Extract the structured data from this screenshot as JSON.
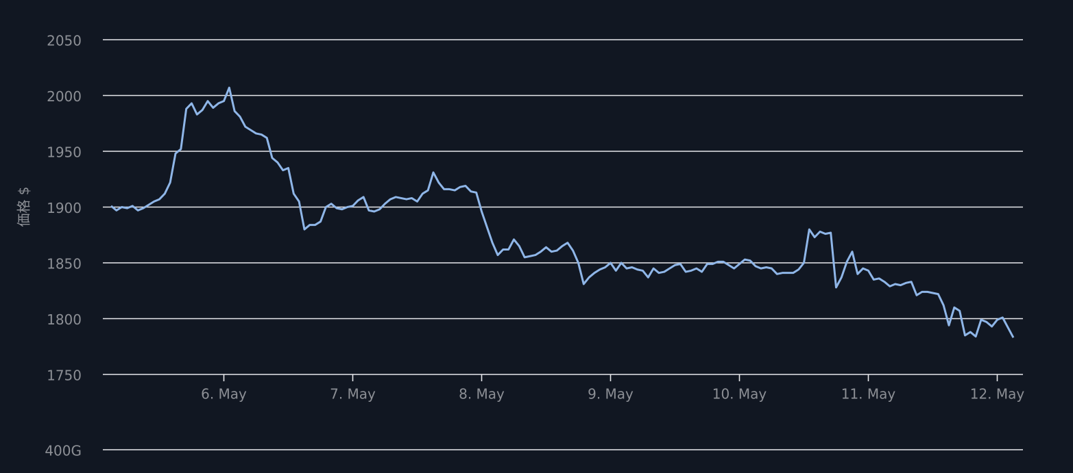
{
  "chart_data": [
    {
      "type": "line",
      "ylabel": "価格 $",
      "categories": [
        null,
        null,
        null,
        null,
        null,
        null,
        null,
        null,
        null,
        null,
        null,
        null,
        null,
        null,
        null,
        null,
        null,
        null,
        null,
        null,
        null,
        "6. May",
        null,
        null,
        null,
        null,
        null,
        null,
        null,
        null,
        null,
        null,
        null,
        null,
        null,
        null,
        null,
        null,
        null,
        null,
        null,
        null,
        null,
        null,
        null,
        "7. May",
        null,
        null,
        null,
        null,
        null,
        null,
        null,
        null,
        null,
        null,
        null,
        null,
        null,
        null,
        null,
        null,
        null,
        null,
        null,
        null,
        null,
        null,
        null,
        "8. May",
        null,
        null,
        null,
        null,
        null,
        null,
        null,
        null,
        null,
        null,
        null,
        null,
        null,
        null,
        null,
        null,
        null,
        null,
        null,
        null,
        null,
        null,
        null,
        "9. May",
        null,
        null,
        null,
        null,
        null,
        null,
        null,
        null,
        null,
        null,
        null,
        null,
        null,
        null,
        null,
        null,
        null,
        null,
        null,
        null,
        null,
        null,
        null,
        "10. May",
        null,
        null,
        null,
        null,
        null,
        null,
        null,
        null,
        null,
        null,
        null,
        null,
        null,
        null,
        null,
        null,
        null,
        null,
        null,
        null,
        null,
        null,
        null,
        "11. May",
        null,
        null,
        null,
        null,
        null,
        null,
        null,
        null,
        null,
        null,
        null,
        null,
        null,
        null,
        null,
        null,
        null,
        null,
        null,
        null,
        null,
        null,
        null,
        "12. May",
        null,
        null,
        null
      ],
      "series": [
        {
          "color": "#8fb6e8",
          "values": [
            1901,
            1897,
            1900,
            1899,
            1901,
            1897,
            1899,
            1902,
            1905,
            1907,
            1912,
            1922,
            1948,
            1952,
            1988,
            1993,
            1983,
            1987,
            1995,
            1989,
            1993,
            1995,
            2007,
            1986,
            1981,
            1972,
            1969,
            1966,
            1965,
            1962,
            1944,
            1940,
            1933,
            1935,
            1912,
            1905,
            1880,
            1884,
            1884,
            1887,
            1900,
            1903,
            1899,
            1898,
            1900,
            1901,
            1906,
            1909,
            1897,
            1896,
            1898,
            1903,
            1907,
            1909,
            1908,
            1907,
            1908,
            1905,
            1912,
            1915,
            1931,
            1922,
            1916,
            1916,
            1915,
            1918,
            1919,
            1914,
            1913,
            1896,
            1882,
            1868,
            1857,
            1862,
            1862,
            1871,
            1865,
            1855,
            1856,
            1857,
            1860,
            1864,
            1860,
            1861,
            1865,
            1868,
            1861,
            1850,
            1831,
            1837,
            1841,
            1844,
            1846,
            1850,
            1843,
            1850,
            1845,
            1846,
            1844,
            1843,
            1837,
            1845,
            1841,
            1842,
            1845,
            1848,
            1849,
            1842,
            1843,
            1845,
            1842,
            1849,
            1849,
            1851,
            1851,
            1848,
            1845,
            1849,
            1853,
            1852,
            1847,
            1845,
            1846,
            1845,
            1840,
            1841,
            1841,
            1841,
            1844,
            1850,
            1880,
            1873,
            1878,
            1876,
            1877,
            1828,
            1837,
            1851,
            1860,
            1840,
            1845,
            1843,
            1835,
            1836,
            1833,
            1829,
            1831,
            1830,
            1832,
            1833,
            1821,
            1824,
            1824,
            1823,
            1822,
            1812,
            1794,
            1810,
            1807,
            1785,
            1788,
            1784,
            1799,
            1797,
            1793,
            1799,
            1801,
            1792,
            1783
          ]
        }
      ],
      "ylim": [
        1750,
        2050
      ],
      "yticks": [
        1750,
        1800,
        1850,
        1900,
        1950,
        2000,
        2050
      ],
      "grid": true
    },
    {
      "type": "bar",
      "ylim": [
        0,
        400000000000
      ],
      "yticks": [
        {
          "value": 400000000000,
          "label": "400G"
        }
      ],
      "grid": true
    }
  ]
}
